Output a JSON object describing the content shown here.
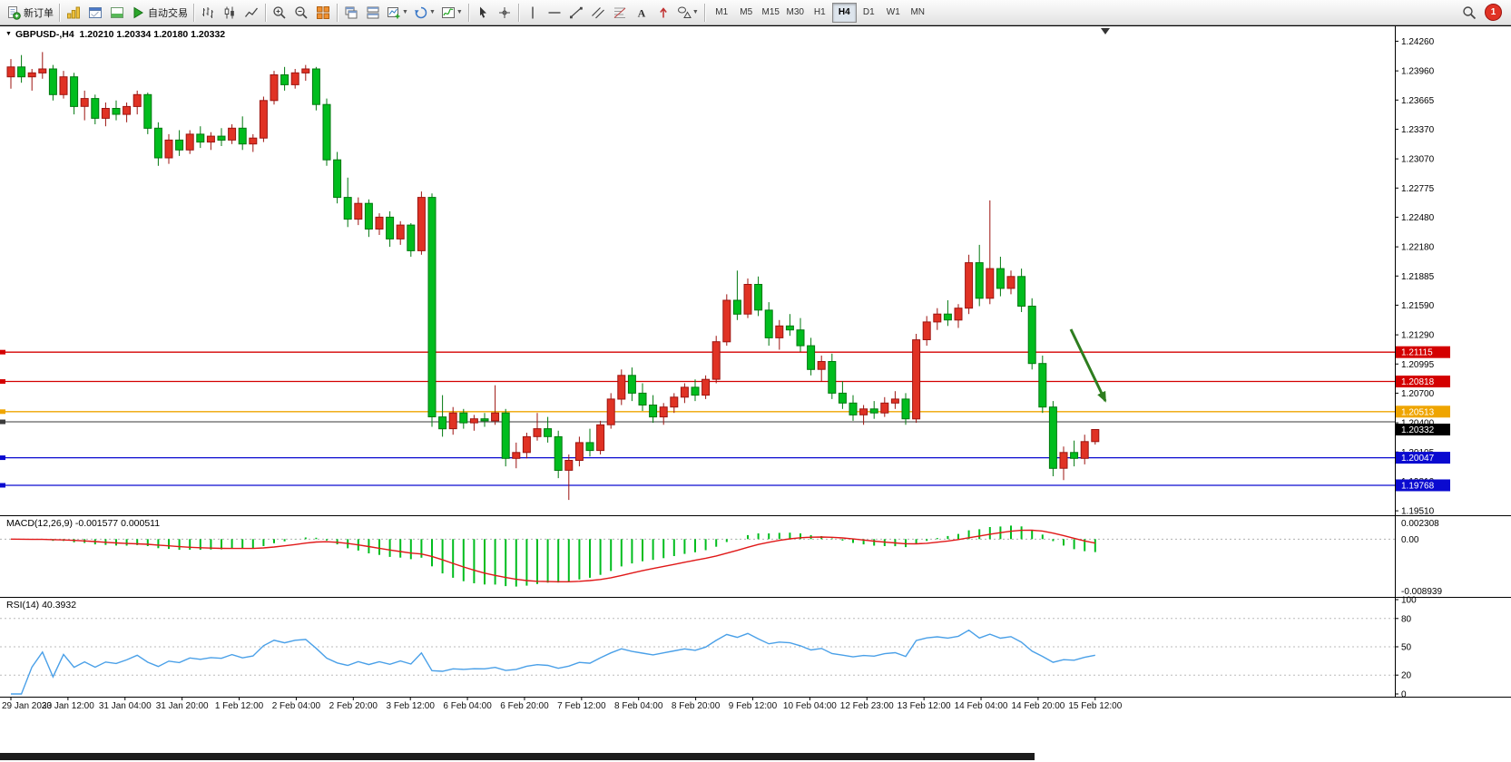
{
  "toolbar": {
    "new_order_label": "新订单",
    "autotrading_label": "自动交易",
    "timeframes": [
      "M1",
      "M5",
      "M15",
      "M30",
      "H1",
      "H4",
      "D1",
      "W1",
      "MN"
    ],
    "active_timeframe": "H4",
    "notification_count": "1"
  },
  "chart": {
    "title_symbol": "GBPUSD-,H4",
    "title_ohlc": "1.20210 1.20334 1.20180 1.20332",
    "macd_label": "MACD(12,26,9) -0.001577 0.000511",
    "rsi_label": "RSI(14) 40.3932"
  },
  "chart_data": {
    "type": "candlestick",
    "symbol": "GBPUSD-",
    "timeframe": "H4",
    "ohlc_display": {
      "open": "1.20210",
      "high": "1.20334",
      "low": "1.20180",
      "close": "1.20332"
    },
    "price_range": [
      1.19465,
      1.2442
    ],
    "price_ticks": [
      "1.24260",
      "1.23960",
      "1.23665",
      "1.23370",
      "1.23070",
      "1.22775",
      "1.22480",
      "1.22180",
      "1.21885",
      "1.21590",
      "1.21290",
      "1.20995",
      "1.20700",
      "1.20400",
      "1.20105",
      "1.19810",
      "1.19510"
    ],
    "colors": {
      "up": "#e03224",
      "up_border": "#9c1410",
      "down": "#00bd1e",
      "down_border": "#00780f",
      "macd_hist": "#00bd1e",
      "macd_signal": "#e01818",
      "rsi_line": "#4aa0e8",
      "arrow": "#2e7d1f"
    },
    "h_lines": [
      {
        "price": 1.21115,
        "label": "1.21115",
        "color": "#d40000"
      },
      {
        "price": 1.20818,
        "label": "1.20818",
        "color": "#d40000"
      },
      {
        "price": 1.20513,
        "label": "1.20513",
        "color": "#efa500"
      },
      {
        "price": 1.2041,
        "label": "",
        "color": "#3a3a3a"
      },
      {
        "price": 1.20047,
        "label": "1.20047",
        "color": "#0a0ad0"
      },
      {
        "price": 1.19768,
        "label": "1.19768",
        "color": "#0a0ad0"
      }
    ],
    "bid_label": {
      "value": "1.20332",
      "price": 1.20332,
      "bg": "#000000"
    },
    "macd": {
      "params": [
        12,
        26,
        9
      ],
      "current": "-0.001577 0.000511",
      "axis_max": "0.002308",
      "axis_zero": "0.00",
      "axis_min": "-0.008939"
    },
    "rsi": {
      "period": 14,
      "current": "40.3932",
      "axis_ticks": [
        "100",
        "80",
        "50",
        "20",
        "0"
      ],
      "levels": [
        80,
        50,
        20
      ]
    },
    "time_labels": [
      "29 Jan 2023",
      "30 Jan 12:00",
      "31 Jan 04:00",
      "31 Jan 20:00",
      "1 Feb 12:00",
      "2 Feb 04:00",
      "2 Feb 20:00",
      "3 Feb 12:00",
      "6 Feb 04:00",
      "6 Feb 20:00",
      "7 Feb 12:00",
      "8 Feb 04:00",
      "8 Feb 20:00",
      "9 Feb 12:00",
      "10 Feb 04:00",
      "12 Feb 23:00",
      "13 Feb 12:00",
      "14 Feb 04:00",
      "14 Feb 20:00",
      "15 Feb 12:00"
    ],
    "candles": [
      [
        1.239,
        1.2408,
        1.2378,
        1.24
      ],
      [
        1.24,
        1.2412,
        1.2384,
        1.239
      ],
      [
        1.239,
        1.2398,
        1.2376,
        1.2394
      ],
      [
        1.2394,
        1.2415,
        1.2388,
        1.2398
      ],
      [
        1.2398,
        1.2402,
        1.2366,
        1.2372
      ],
      [
        1.2372,
        1.2396,
        1.2368,
        1.239
      ],
      [
        1.239,
        1.2394,
        1.2352,
        1.236
      ],
      [
        1.236,
        1.2376,
        1.2346,
        1.2368
      ],
      [
        1.2368,
        1.2372,
        1.2342,
        1.2348
      ],
      [
        1.2348,
        1.2364,
        1.234,
        1.2358
      ],
      [
        1.2358,
        1.2366,
        1.2346,
        1.2352
      ],
      [
        1.2352,
        1.2364,
        1.2344,
        1.236
      ],
      [
        1.236,
        1.2376,
        1.2352,
        1.2372
      ],
      [
        1.2372,
        1.2374,
        1.2332,
        1.2338
      ],
      [
        1.2338,
        1.2344,
        1.23,
        1.2308
      ],
      [
        1.2308,
        1.2332,
        1.2302,
        1.2326
      ],
      [
        1.2326,
        1.2336,
        1.231,
        1.2316
      ],
      [
        1.2316,
        1.2336,
        1.2312,
        1.2332
      ],
      [
        1.2332,
        1.234,
        1.2318,
        1.2324
      ],
      [
        1.2324,
        1.2334,
        1.2316,
        1.233
      ],
      [
        1.233,
        1.2338,
        1.232,
        1.2326
      ],
      [
        1.2326,
        1.2342,
        1.2322,
        1.2338
      ],
      [
        1.2338,
        1.235,
        1.2316,
        1.2322
      ],
      [
        1.2322,
        1.2332,
        1.2314,
        1.2328
      ],
      [
        1.2328,
        1.237,
        1.2324,
        1.2366
      ],
      [
        1.2366,
        1.2396,
        1.2362,
        1.2392
      ],
      [
        1.2392,
        1.24,
        1.2376,
        1.2382
      ],
      [
        1.2382,
        1.2398,
        1.2378,
        1.2394
      ],
      [
        1.2394,
        1.2402,
        1.2386,
        1.2398
      ],
      [
        1.2398,
        1.24,
        1.2356,
        1.2362
      ],
      [
        1.2362,
        1.2368,
        1.23,
        1.2306
      ],
      [
        1.2306,
        1.2314,
        1.2262,
        1.2268
      ],
      [
        1.2268,
        1.2288,
        1.2238,
        1.2246
      ],
      [
        1.2246,
        1.2268,
        1.224,
        1.2262
      ],
      [
        1.2262,
        1.2266,
        1.2228,
        1.2236
      ],
      [
        1.2236,
        1.2252,
        1.223,
        1.2248
      ],
      [
        1.2248,
        1.2254,
        1.2218,
        1.2226
      ],
      [
        1.2226,
        1.2244,
        1.222,
        1.224
      ],
      [
        1.224,
        1.2242,
        1.2208,
        1.2214
      ],
      [
        1.2214,
        1.2274,
        1.221,
        1.2268
      ],
      [
        1.2268,
        1.2272,
        1.2036,
        1.2046
      ],
      [
        1.2046,
        1.2068,
        1.2026,
        1.2034
      ],
      [
        1.2034,
        1.2056,
        1.2028,
        1.205
      ],
      [
        1.205,
        1.2054,
        1.2034,
        1.204
      ],
      [
        1.204,
        1.2048,
        1.2032,
        1.2044
      ],
      [
        1.2044,
        1.205,
        1.2036,
        1.2042
      ],
      [
        1.2042,
        1.2078,
        1.2038,
        1.205
      ],
      [
        1.205,
        1.2054,
        1.1996,
        1.2004
      ],
      [
        1.2004,
        1.202,
        1.1994,
        1.201
      ],
      [
        1.201,
        1.203,
        1.2004,
        1.2026
      ],
      [
        1.2026,
        1.205,
        1.2022,
        1.2034
      ],
      [
        1.2034,
        1.2046,
        1.202,
        1.2026
      ],
      [
        1.2026,
        1.2032,
        1.1984,
        1.1992
      ],
      [
        1.1992,
        1.2008,
        1.1962,
        1.2002
      ],
      [
        1.2002,
        1.2026,
        1.1996,
        1.202
      ],
      [
        1.202,
        1.2034,
        1.2006,
        1.2012
      ],
      [
        1.2012,
        1.2042,
        1.2008,
        1.2038
      ],
      [
        1.2038,
        1.207,
        1.2034,
        1.2064
      ],
      [
        1.2064,
        1.2094,
        1.2058,
        1.2088
      ],
      [
        1.2088,
        1.2096,
        1.2062,
        1.207
      ],
      [
        1.207,
        1.208,
        1.2052,
        1.2058
      ],
      [
        1.2058,
        1.2068,
        1.204,
        1.2046
      ],
      [
        1.2046,
        1.206,
        1.2038,
        1.2056
      ],
      [
        1.2056,
        1.207,
        1.205,
        1.2066
      ],
      [
        1.2066,
        1.208,
        1.206,
        1.2076
      ],
      [
        1.2076,
        1.2084,
        1.2062,
        1.2068
      ],
      [
        1.2068,
        1.2088,
        1.2064,
        1.2084
      ],
      [
        1.2084,
        1.2128,
        1.208,
        1.2122
      ],
      [
        1.2122,
        1.217,
        1.2118,
        1.2164
      ],
      [
        1.2164,
        1.2194,
        1.2144,
        1.215
      ],
      [
        1.215,
        1.2186,
        1.2146,
        1.218
      ],
      [
        1.218,
        1.2188,
        1.2148,
        1.2154
      ],
      [
        1.2154,
        1.2162,
        1.2118,
        1.2126
      ],
      [
        1.2126,
        1.2144,
        1.2114,
        1.2138
      ],
      [
        1.2138,
        1.215,
        1.2128,
        1.2134
      ],
      [
        1.2134,
        1.2146,
        1.2112,
        1.2118
      ],
      [
        1.2118,
        1.2126,
        1.2088,
        1.2094
      ],
      [
        1.2094,
        1.2108,
        1.2082,
        1.2102
      ],
      [
        1.2102,
        1.211,
        1.2064,
        1.207
      ],
      [
        1.207,
        1.2082,
        1.2054,
        1.206
      ],
      [
        1.206,
        1.2068,
        1.2042,
        1.2048
      ],
      [
        1.2048,
        1.2058,
        1.2038,
        1.2054
      ],
      [
        1.2054,
        1.2062,
        1.2044,
        1.205
      ],
      [
        1.205,
        1.2066,
        1.2046,
        1.206
      ],
      [
        1.206,
        1.2072,
        1.2054,
        1.2064
      ],
      [
        1.2064,
        1.207,
        1.2038,
        1.2044
      ],
      [
        1.2044,
        1.213,
        1.204,
        1.2124
      ],
      [
        1.2124,
        1.2148,
        1.2118,
        1.2142
      ],
      [
        1.2142,
        1.2156,
        1.2134,
        1.215
      ],
      [
        1.215,
        1.2164,
        1.2138,
        1.2144
      ],
      [
        1.2144,
        1.216,
        1.2136,
        1.2156
      ],
      [
        1.2156,
        1.221,
        1.215,
        1.2202
      ],
      [
        1.2202,
        1.222,
        1.2158,
        1.2166
      ],
      [
        1.2166,
        1.2265,
        1.216,
        1.2196
      ],
      [
        1.2196,
        1.2208,
        1.2168,
        1.2176
      ],
      [
        1.2176,
        1.2194,
        1.217,
        1.2188
      ],
      [
        1.2188,
        1.2196,
        1.2152,
        1.2158
      ],
      [
        1.2158,
        1.2166,
        1.2094,
        1.21
      ],
      [
        1.21,
        1.2108,
        1.205,
        1.2056
      ],
      [
        1.2056,
        1.2062,
        1.1986,
        1.1994
      ],
      [
        1.1994,
        1.2016,
        1.1982,
        1.201
      ],
      [
        1.201,
        1.2022,
        1.1996,
        1.2004
      ],
      [
        1.2004,
        1.2028,
        1.1998,
        1.2021
      ],
      [
        1.2021,
        1.20334,
        1.2018,
        1.20332
      ]
    ]
  }
}
